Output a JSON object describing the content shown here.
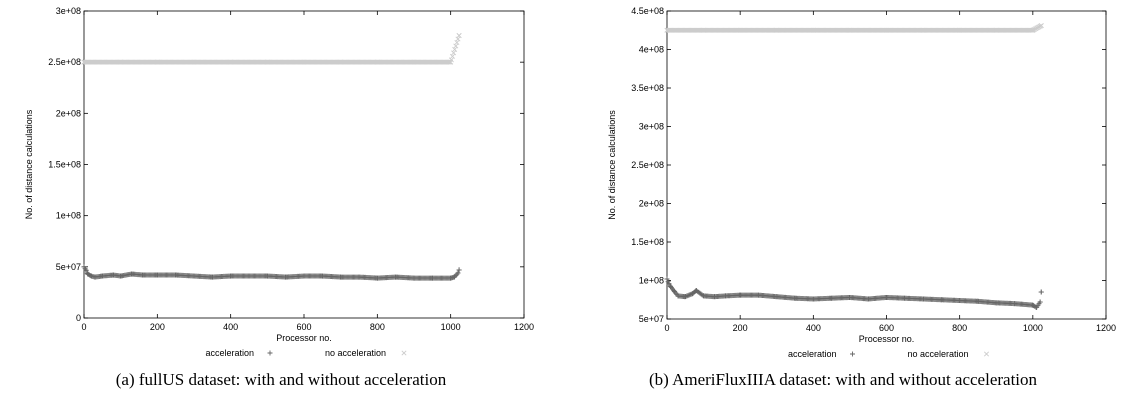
{
  "captions": [
    "(a)  fullUS dataset: with and without acceleration",
    "(b)  AmeriFluxIIIA dataset: with and without acceleration"
  ],
  "colors": {
    "acceleration": "#666666",
    "no_acceleration": "#cccccc",
    "axis": "#000000"
  },
  "chart_data": [
    {
      "type": "scatter",
      "title": "",
      "xlabel": "Processor no.",
      "ylabel": "No. of distance calculations",
      "xlim": [
        0,
        1200
      ],
      "ylim": [
        0,
        300000000
      ],
      "x_ticks": [
        0,
        200,
        400,
        600,
        800,
        1000,
        1200
      ],
      "x_tick_labels": [
        "0",
        "200",
        "400",
        "600",
        "800",
        "1000",
        "1200"
      ],
      "y_ticks": [
        0,
        50000000,
        100000000,
        150000000,
        200000000,
        250000000,
        300000000
      ],
      "y_tick_labels": [
        "0",
        "5e+07",
        "1e+08",
        "1.5e+08",
        "2e+08",
        "2.5e+08",
        "3e+08"
      ],
      "legend_position": "bottom",
      "series": [
        {
          "name": "acceleration",
          "marker": "plus",
          "x": [
            0,
            5,
            10,
            20,
            30,
            50,
            80,
            100,
            130,
            160,
            200,
            250,
            300,
            350,
            400,
            450,
            500,
            550,
            600,
            650,
            700,
            750,
            800,
            850,
            900,
            950,
            1000,
            1010,
            1020,
            1023
          ],
          "y": [
            50000000,
            47000000,
            43000000,
            41000000,
            40000000,
            41000000,
            42000000,
            41000000,
            43000000,
            42000000,
            42000000,
            42000000,
            41000000,
            40000000,
            41000000,
            41000000,
            41000000,
            40000000,
            41000000,
            41000000,
            40000000,
            40000000,
            39000000,
            40000000,
            39000000,
            39000000,
            39000000,
            40000000,
            44000000,
            47000000
          ]
        },
        {
          "name": "no acceleration",
          "marker": "x",
          "x": [
            0,
            100,
            200,
            300,
            400,
            500,
            600,
            700,
            800,
            900,
            1000,
            1023
          ],
          "y": [
            250000000,
            250000000,
            250000000,
            250000000,
            250000000,
            250000000,
            250000000,
            250000000,
            250000000,
            250000000,
            250000000,
            276000000
          ]
        }
      ]
    },
    {
      "type": "scatter",
      "title": "",
      "xlabel": "Processor no.",
      "ylabel": "No. of distance calculations",
      "xlim": [
        0,
        1200
      ],
      "ylim": [
        50000000,
        450000000
      ],
      "x_ticks": [
        0,
        200,
        400,
        600,
        800,
        1000,
        1200
      ],
      "x_tick_labels": [
        "0",
        "200",
        "400",
        "600",
        "800",
        "1000",
        "1200"
      ],
      "y_ticks": [
        50000000,
        100000000,
        150000000,
        200000000,
        250000000,
        300000000,
        350000000,
        400000000,
        450000000
      ],
      "y_tick_labels": [
        "5e+07",
        "1e+08",
        "1.5e+08",
        "2e+08",
        "2.5e+08",
        "3e+08",
        "3.5e+08",
        "4e+08",
        "4.5e+08"
      ],
      "legend_position": "bottom",
      "series": [
        {
          "name": "acceleration",
          "marker": "plus",
          "x": [
            0,
            5,
            10,
            20,
            30,
            50,
            70,
            80,
            100,
            130,
            160,
            200,
            250,
            300,
            350,
            400,
            450,
            500,
            550,
            600,
            650,
            700,
            750,
            800,
            850,
            900,
            950,
            1000,
            1010,
            1020,
            1023
          ],
          "y": [
            102000000,
            96000000,
            92000000,
            86000000,
            80000000,
            79000000,
            83000000,
            87000000,
            80000000,
            79000000,
            80000000,
            81000000,
            81000000,
            79000000,
            77000000,
            76000000,
            77000000,
            78000000,
            76000000,
            78000000,
            77000000,
            76000000,
            75000000,
            74000000,
            73000000,
            71000000,
            70000000,
            68000000,
            65000000,
            72000000,
            85000000
          ]
        },
        {
          "name": "no acceleration",
          "marker": "x",
          "x": [
            0,
            100,
            200,
            300,
            400,
            500,
            600,
            700,
            800,
            900,
            1000,
            1023
          ],
          "y": [
            425000000,
            425000000,
            425000000,
            425000000,
            425000000,
            425000000,
            425000000,
            425000000,
            425000000,
            425000000,
            425000000,
            431000000
          ]
        }
      ]
    }
  ]
}
